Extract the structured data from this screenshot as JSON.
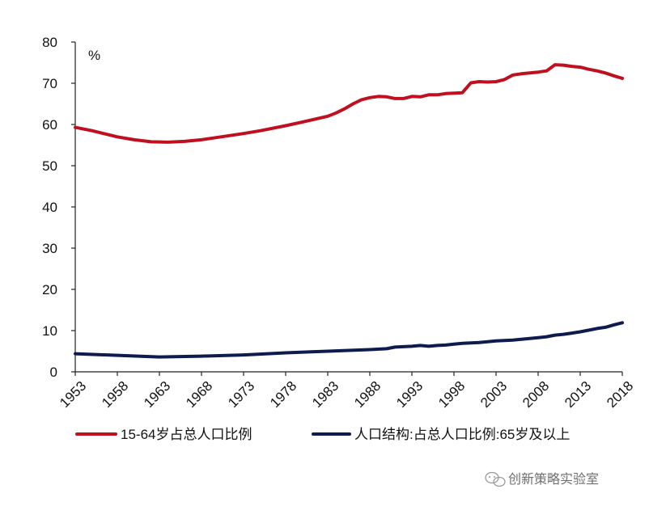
{
  "chart_data": {
    "type": "line",
    "unit": "%",
    "ylim": [
      0,
      80
    ],
    "yticks": [
      "0",
      "10",
      "20",
      "30",
      "40",
      "50",
      "60",
      "70",
      "80"
    ],
    "xlim": [
      1953,
      2018
    ],
    "xticks": [
      "1953",
      "1958",
      "1963",
      "1968",
      "1973",
      "1978",
      "1983",
      "1988",
      "1993",
      "1998",
      "2003",
      "2008",
      "2013",
      "2018"
    ],
    "grid": false,
    "legend_position": "bottom",
    "series": [
      {
        "name": "15-64岁占总人口比例",
        "color": "#c0101f",
        "points": [
          [
            1953,
            59.3
          ],
          [
            1955,
            58.5
          ],
          [
            1958,
            57.0
          ],
          [
            1960,
            56.3
          ],
          [
            1962,
            55.8
          ],
          [
            1964,
            55.7
          ],
          [
            1966,
            55.9
          ],
          [
            1968,
            56.3
          ],
          [
            1970,
            56.9
          ],
          [
            1973,
            57.8
          ],
          [
            1975,
            58.5
          ],
          [
            1978,
            59.7
          ],
          [
            1980,
            60.6
          ],
          [
            1983,
            62.0
          ],
          [
            1984,
            62.8
          ],
          [
            1985,
            63.8
          ],
          [
            1986,
            65.0
          ],
          [
            1987,
            66.0
          ],
          [
            1988,
            66.5
          ],
          [
            1989,
            66.8
          ],
          [
            1990,
            66.7
          ],
          [
            1991,
            66.3
          ],
          [
            1992,
            66.3
          ],
          [
            1993,
            66.8
          ],
          [
            1994,
            66.7
          ],
          [
            1995,
            67.2
          ],
          [
            1996,
            67.2
          ],
          [
            1997,
            67.5
          ],
          [
            1998,
            67.6
          ],
          [
            1999,
            67.7
          ],
          [
            2000,
            70.1
          ],
          [
            2001,
            70.4
          ],
          [
            2002,
            70.3
          ],
          [
            2003,
            70.4
          ],
          [
            2004,
            70.9
          ],
          [
            2005,
            72.0
          ],
          [
            2006,
            72.3
          ],
          [
            2007,
            72.5
          ],
          [
            2008,
            72.7
          ],
          [
            2009,
            73.0
          ],
          [
            2010,
            74.5
          ],
          [
            2011,
            74.4
          ],
          [
            2012,
            74.1
          ],
          [
            2013,
            73.9
          ],
          [
            2014,
            73.4
          ],
          [
            2015,
            73.0
          ],
          [
            2016,
            72.5
          ],
          [
            2017,
            71.8
          ],
          [
            2018,
            71.2
          ]
        ]
      },
      {
        "name": "人口结构:占总人口比例:65岁及以上",
        "color": "#0d1b4f",
        "points": [
          [
            1953,
            4.4
          ],
          [
            1958,
            4.0
          ],
          [
            1963,
            3.6
          ],
          [
            1968,
            3.8
          ],
          [
            1973,
            4.1
          ],
          [
            1978,
            4.6
          ],
          [
            1983,
            5.0
          ],
          [
            1988,
            5.4
          ],
          [
            1990,
            5.6
          ],
          [
            1991,
            6.0
          ],
          [
            1993,
            6.2
          ],
          [
            1994,
            6.4
          ],
          [
            1995,
            6.2
          ],
          [
            1996,
            6.4
          ],
          [
            1997,
            6.5
          ],
          [
            1998,
            6.7
          ],
          [
            1999,
            6.9
          ],
          [
            2000,
            7.0
          ],
          [
            2001,
            7.1
          ],
          [
            2002,
            7.3
          ],
          [
            2003,
            7.5
          ],
          [
            2004,
            7.6
          ],
          [
            2005,
            7.7
          ],
          [
            2006,
            7.9
          ],
          [
            2007,
            8.1
          ],
          [
            2008,
            8.3
          ],
          [
            2009,
            8.5
          ],
          [
            2010,
            8.9
          ],
          [
            2011,
            9.1
          ],
          [
            2012,
            9.4
          ],
          [
            2013,
            9.7
          ],
          [
            2014,
            10.1
          ],
          [
            2015,
            10.5
          ],
          [
            2016,
            10.8
          ],
          [
            2017,
            11.4
          ],
          [
            2018,
            11.9
          ]
        ]
      }
    ]
  },
  "watermark": {
    "text": "创新策略实验室",
    "icon": "wechat-icon"
  }
}
